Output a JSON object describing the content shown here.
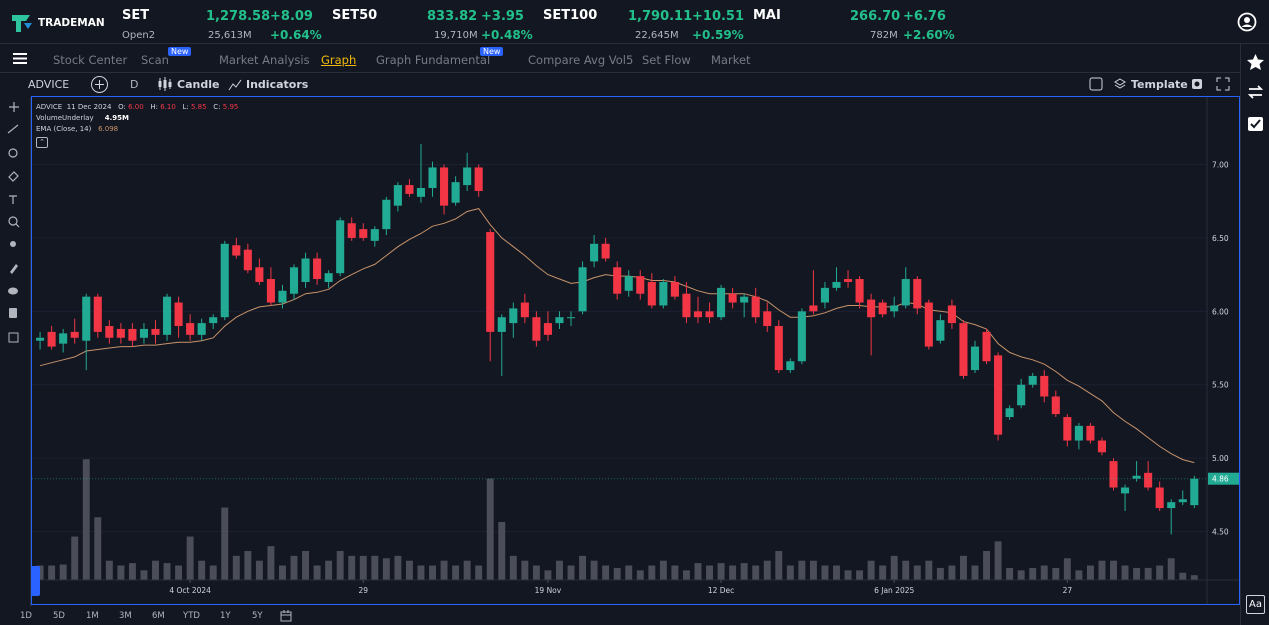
{
  "logo": "TRADEMAN",
  "indices": [
    {
      "name": "SET",
      "value": "1,278.58",
      "change": "+8.09",
      "sub": "Open2",
      "volume": "25,613M",
      "percent": "+0.64%"
    },
    {
      "name": "SET50",
      "value": "833.82",
      "change": "+3.95",
      "volume": "19,710M",
      "percent": "+0.48%"
    },
    {
      "name": "SET100",
      "value": "1,790.11",
      "change": "+10.51",
      "volume": "22,645M",
      "percent": "+0.59%"
    },
    {
      "name": "MAI",
      "value": "266.70",
      "change": "+6.76",
      "volume": "782M",
      "percent": "+2.60%"
    }
  ],
  "nav": [
    {
      "label": "Stock Center"
    },
    {
      "label": "Scan",
      "badge": "New"
    },
    {
      "label": "Market Analysis"
    },
    {
      "label": "Graph"
    },
    {
      "label": "Graph Fundamental",
      "badge": "New"
    },
    {
      "label": "Compare Avg Vol5"
    },
    {
      "label": "Set Flow"
    },
    {
      "label": "Market"
    }
  ],
  "toolbar": {
    "symbol": "ADVICE",
    "interval": "D",
    "chart_style": "Candle",
    "indicators": "Indicators",
    "template": "Template"
  },
  "legend": {
    "symbol": "ADVICE",
    "date": "11 Dec 2024",
    "o_label": "O:",
    "o": "6.00",
    "h_label": "H:",
    "h": "6.10",
    "l_label": "L:",
    "l": "5.85",
    "c_label": "C:",
    "c": "5.95",
    "volume_label": "VolumeUnderlay",
    "volume": "4.95M",
    "ema_label": "EMA (Close, 14)",
    "ema": "6.098"
  },
  "ranges": [
    "1D",
    "5D",
    "1M",
    "3M",
    "6M",
    "YTD",
    "1Y",
    "5Y"
  ],
  "font_button": "Aa",
  "chart_data": {
    "type": "candlestick",
    "up_color": "#22ab94",
    "down_color": "#f23645",
    "volume_color": "#4b4e58",
    "ema_color": "#c8936a",
    "grid": true,
    "xlim": [
      -0.7,
      101.1
    ],
    "ylim": [
      4.17,
      7.46
    ],
    "volume_lim": [
      0,
      100
    ],
    "yticks": [
      {
        "value": 7,
        "label": "7.00"
      },
      {
        "value": 6.5,
        "label": "6.50"
      },
      {
        "value": 6,
        "label": "6.00"
      },
      {
        "value": 5.5,
        "label": "5.50"
      },
      {
        "value": 5,
        "label": "5.00"
      },
      {
        "value": 4.5,
        "label": "4.50"
      }
    ],
    "xticks": [
      {
        "value": 13,
        "label": "4 Oct 2024"
      },
      {
        "value": 28,
        "label": "29"
      },
      {
        "value": 44,
        "label": "19 Nov"
      },
      {
        "value": 59,
        "label": "12 Dec"
      },
      {
        "value": 74,
        "label": "6 Jan 2025"
      },
      {
        "value": 89,
        "label": "27"
      }
    ],
    "candles": [
      [
        5.8,
        5.86,
        5.74,
        5.82
      ],
      [
        5.86,
        5.9,
        5.74,
        5.76
      ],
      [
        5.78,
        5.88,
        5.72,
        5.85
      ],
      [
        5.86,
        5.95,
        5.78,
        5.82
      ],
      [
        5.8,
        6.12,
        5.6,
        6.1
      ],
      [
        6.1,
        6.12,
        5.82,
        5.86
      ],
      [
        5.9,
        5.94,
        5.78,
        5.82
      ],
      [
        5.88,
        5.92,
        5.78,
        5.82
      ],
      [
        5.88,
        5.92,
        5.76,
        5.8
      ],
      [
        5.82,
        5.92,
        5.78,
        5.88
      ],
      [
        5.88,
        5.94,
        5.78,
        5.84
      ],
      [
        5.84,
        6.12,
        5.8,
        6.1
      ],
      [
        6.06,
        6.1,
        5.82,
        5.9
      ],
      [
        5.92,
        5.98,
        5.8,
        5.84
      ],
      [
        5.84,
        5.95,
        5.8,
        5.92
      ],
      [
        5.92,
        5.98,
        5.88,
        5.96
      ],
      [
        5.96,
        6.48,
        5.94,
        6.46
      ],
      [
        6.45,
        6.5,
        6.36,
        6.38
      ],
      [
        6.42,
        6.46,
        6.26,
        6.28
      ],
      [
        6.3,
        6.36,
        6.18,
        6.2
      ],
      [
        6.22,
        6.3,
        6.04,
        6.06
      ],
      [
        6.06,
        6.18,
        6.02,
        6.14
      ],
      [
        6.12,
        6.32,
        6.08,
        6.3
      ],
      [
        6.2,
        6.4,
        6.16,
        6.36
      ],
      [
        6.36,
        6.4,
        6.18,
        6.22
      ],
      [
        6.2,
        6.28,
        6.16,
        6.26
      ],
      [
        6.26,
        6.64,
        6.24,
        6.62
      ],
      [
        6.6,
        6.64,
        6.48,
        6.5
      ],
      [
        6.56,
        6.6,
        6.48,
        6.5
      ],
      [
        6.48,
        6.58,
        6.44,
        6.56
      ],
      [
        6.56,
        6.78,
        6.52,
        6.76
      ],
      [
        6.72,
        6.88,
        6.68,
        6.86
      ],
      [
        6.86,
        6.9,
        6.78,
        6.8
      ],
      [
        6.78,
        7.14,
        6.74,
        6.84
      ],
      [
        6.84,
        7.02,
        6.78,
        6.98
      ],
      [
        6.98,
        7.0,
        6.66,
        6.72
      ],
      [
        6.74,
        6.92,
        6.72,
        6.88
      ],
      [
        6.86,
        7.08,
        6.82,
        6.98
      ],
      [
        6.98,
        7.0,
        6.78,
        6.82
      ],
      [
        6.54,
        6.56,
        5.66,
        5.86
      ],
      [
        5.86,
        5.98,
        5.56,
        5.96
      ],
      [
        5.92,
        6.06,
        5.82,
        6.02
      ],
      [
        6.06,
        6.12,
        5.92,
        5.96
      ],
      [
        5.96,
        6.0,
        5.76,
        5.8
      ],
      [
        5.92,
        6.0,
        5.8,
        5.84
      ],
      [
        5.92,
        6.0,
        5.88,
        5.96
      ],
      [
        5.96,
        6.0,
        5.9,
        5.96
      ],
      [
        6.0,
        6.34,
        5.98,
        6.3
      ],
      [
        6.34,
        6.52,
        6.3,
        6.46
      ],
      [
        6.46,
        6.5,
        6.34,
        6.36
      ],
      [
        6.3,
        6.34,
        6.08,
        6.12
      ],
      [
        6.14,
        6.28,
        6.1,
        6.24
      ],
      [
        6.24,
        6.28,
        6.08,
        6.12
      ],
      [
        6.2,
        6.26,
        6.02,
        6.04
      ],
      [
        6.04,
        6.22,
        6.02,
        6.2
      ],
      [
        6.2,
        6.24,
        6.08,
        6.1
      ],
      [
        6.12,
        6.2,
        5.92,
        5.96
      ],
      [
        6.0,
        6.1,
        5.92,
        5.96
      ],
      [
        6.0,
        6.06,
        5.92,
        5.96
      ],
      [
        5.96,
        6.18,
        5.94,
        6.16
      ],
      [
        6.12,
        6.16,
        6.02,
        6.06
      ],
      [
        6.06,
        6.12,
        5.96,
        6.1
      ],
      [
        6.1,
        6.16,
        5.92,
        5.96
      ],
      [
        6.0,
        6.06,
        5.86,
        5.9
      ],
      [
        5.9,
        5.94,
        5.58,
        5.6
      ],
      [
        5.6,
        5.68,
        5.58,
        5.66
      ],
      [
        5.66,
        6.02,
        5.64,
        6.0
      ],
      [
        6.04,
        6.28,
        5.98,
        6.0
      ],
      [
        6.06,
        6.2,
        6.02,
        6.16
      ],
      [
        6.16,
        6.3,
        6.14,
        6.2
      ],
      [
        6.22,
        6.28,
        6.16,
        6.2
      ],
      [
        6.22,
        6.24,
        6.02,
        6.06
      ],
      [
        6.08,
        6.12,
        5.7,
        5.96
      ],
      [
        6.06,
        6.08,
        5.96,
        5.98
      ],
      [
        6.0,
        6.1,
        5.96,
        6.04
      ],
      [
        6.04,
        6.3,
        6.02,
        6.22
      ],
      [
        6.22,
        6.24,
        5.98,
        6.02
      ],
      [
        6.06,
        6.08,
        5.74,
        5.76
      ],
      [
        5.8,
        5.98,
        5.78,
        5.94
      ],
      [
        6.04,
        6.08,
        5.88,
        5.92
      ],
      [
        5.92,
        5.94,
        5.54,
        5.56
      ],
      [
        5.6,
        5.8,
        5.58,
        5.76
      ],
      [
        5.86,
        5.88,
        5.64,
        5.66
      ],
      [
        5.7,
        5.72,
        5.12,
        5.16
      ],
      [
        5.28,
        5.36,
        5.26,
        5.34
      ],
      [
        5.36,
        5.54,
        5.34,
        5.5
      ],
      [
        5.5,
        5.58,
        5.48,
        5.56
      ],
      [
        5.56,
        5.6,
        5.38,
        5.42
      ],
      [
        5.42,
        5.46,
        5.28,
        5.3
      ],
      [
        5.28,
        5.3,
        5.08,
        5.12
      ],
      [
        5.12,
        5.24,
        5.06,
        5.22
      ],
      [
        5.22,
        5.24,
        5.1,
        5.12
      ],
      [
        5.12,
        5.14,
        5.02,
        5.04
      ],
      [
        4.98,
        5.0,
        4.78,
        4.8
      ],
      [
        4.76,
        4.82,
        4.64,
        4.8
      ],
      [
        4.86,
        4.98,
        4.84,
        4.88
      ],
      [
        4.9,
        4.98,
        4.78,
        4.8
      ],
      [
        4.8,
        4.84,
        4.64,
        4.66
      ],
      [
        4.66,
        4.72,
        4.48,
        4.7
      ],
      [
        4.7,
        4.78,
        4.68,
        4.72
      ],
      [
        4.68,
        4.88,
        4.66,
        4.86
      ]
    ],
    "volumes": [
      3,
      3,
      3.2,
      9,
      25,
      13,
      4,
      3,
      3.5,
      2,
      4,
      3.5,
      3,
      9,
      4,
      3,
      15,
      5,
      6,
      4,
      7,
      3,
      5,
      6,
      3,
      4,
      6,
      5,
      5,
      5,
      4.5,
      5,
      4,
      3,
      3,
      4,
      3,
      4,
      3,
      21,
      12,
      5,
      4,
      3,
      2,
      4,
      3,
      5,
      4,
      3,
      2.5,
      3,
      2,
      3,
      4,
      3,
      2,
      3.5,
      3,
      3.5,
      3,
      3.5,
      3,
      4,
      6,
      3,
      4,
      4,
      3,
      3,
      2,
      2,
      4,
      3,
      5,
      4,
      3,
      4,
      2.5,
      3,
      5,
      3,
      6,
      8,
      2.5,
      2,
      2.5,
      3,
      2.5,
      4.5,
      2,
      3,
      4,
      4,
      3,
      2.5,
      2.5,
      3,
      4.5,
      1.5,
      1
    ],
    "ema": [
      5.63,
      5.65,
      5.67,
      5.69,
      5.73,
      5.74,
      5.75,
      5.76,
      5.76,
      5.77,
      5.77,
      5.78,
      5.79,
      5.79,
      5.8,
      5.82,
      5.9,
      5.96,
      6.0,
      6.03,
      6.04,
      6.05,
      6.08,
      6.12,
      6.13,
      6.15,
      6.21,
      6.25,
      6.29,
      6.32,
      6.38,
      6.44,
      6.49,
      6.53,
      6.58,
      6.6,
      6.63,
      6.68,
      6.7,
      6.59,
      6.5,
      6.44,
      6.38,
      6.31,
      6.25,
      6.22,
      6.19,
      6.2,
      6.23,
      6.25,
      6.24,
      6.24,
      6.23,
      6.21,
      6.21,
      6.2,
      6.17,
      6.14,
      6.12,
      6.12,
      6.12,
      6.12,
      6.1,
      6.07,
      6.01,
      5.96,
      5.96,
      5.97,
      5.99,
      6.02,
      6.04,
      6.04,
      6.03,
      6.03,
      6.03,
      6.06,
      6.05,
      6.01,
      6.0,
      5.99,
      5.93,
      5.91,
      5.88,
      5.78,
      5.72,
      5.69,
      5.67,
      5.64,
      5.59,
      5.53,
      5.49,
      5.44,
      5.39,
      5.31,
      5.25,
      5.2,
      5.14,
      5.08,
      5.03,
      4.99,
      4.97
    ]
  }
}
